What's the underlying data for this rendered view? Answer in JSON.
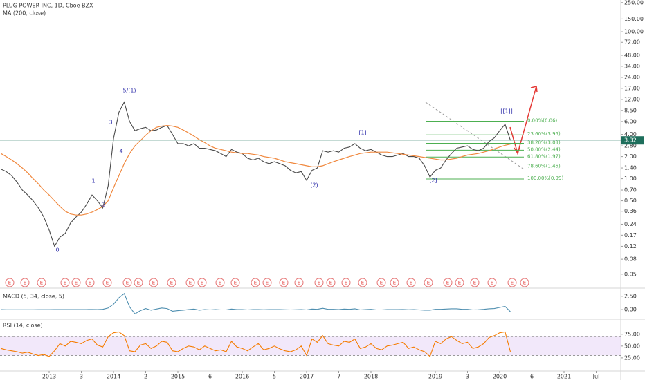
{
  "chart_data": [
    {
      "type": "line",
      "title": "PLUG POWER INC, 1D, Cboe BZX",
      "log_scale": true,
      "x": [
        "2012-04",
        "2012-05",
        "2012-06",
        "2012-07",
        "2012-08",
        "2012-09",
        "2012-10",
        "2012-11",
        "2012-12",
        "2013-01",
        "2013-02",
        "2013-03",
        "2013-04",
        "2013-05",
        "2013-06",
        "2013-07",
        "2013-08",
        "2013-09",
        "2013-10",
        "2013-11",
        "2013-12",
        "2014-01",
        "2014-02",
        "2014-03",
        "2014-04",
        "2014-05",
        "2014-06",
        "2014-07",
        "2014-08",
        "2014-09",
        "2014-10",
        "2014-11",
        "2014-12",
        "2015-01",
        "2015-02",
        "2015-03",
        "2015-04",
        "2015-05",
        "2015-06",
        "2015-07",
        "2015-08",
        "2015-09",
        "2015-10",
        "2015-11",
        "2015-12",
        "2016-01",
        "2016-02",
        "2016-03",
        "2016-04",
        "2016-05",
        "2016-06",
        "2016-07",
        "2016-08",
        "2016-09",
        "2016-10",
        "2016-11",
        "2016-12",
        "2017-01",
        "2017-02",
        "2017-03",
        "2017-04",
        "2017-05",
        "2017-06",
        "2017-07",
        "2017-08",
        "2017-09",
        "2017-10",
        "2017-11",
        "2017-12",
        "2018-01",
        "2018-02",
        "2018-03",
        "2018-04",
        "2018-05",
        "2018-06",
        "2018-07",
        "2018-08",
        "2018-09",
        "2018-10",
        "2018-11",
        "2018-12",
        "2019-01",
        "2019-02",
        "2019-03",
        "2019-04",
        "2019-05",
        "2019-06",
        "2019-07",
        "2019-08",
        "2019-09",
        "2019-10",
        "2019-11",
        "2019-12",
        "2020-01",
        "2020-02",
        "2020-03"
      ],
      "series": [
        {
          "color": "#4a4a4a",
          "values": [
            1.35,
            1.25,
            1.1,
            0.9,
            0.7,
            0.6,
            0.5,
            0.4,
            0.3,
            0.2,
            0.12,
            0.16,
            0.18,
            0.25,
            0.3,
            0.35,
            0.45,
            0.6,
            0.5,
            0.4,
            0.8,
            3.5,
            8,
            11,
            6,
            4.5,
            4.8,
            5,
            4.5,
            4.6,
            5,
            5.3,
            4,
            3,
            3,
            2.8,
            3,
            2.6,
            2.6,
            2.5,
            2.4,
            2.2,
            2,
            2.5,
            2.3,
            2.2,
            1.9,
            1.8,
            1.9,
            1.7,
            1.6,
            1.7,
            1.6,
            1.5,
            1.3,
            1.2,
            1.25,
            0.95,
            1.3,
            1.4,
            2.4,
            2.3,
            2.4,
            2.3,
            2.6,
            2.7,
            3,
            2.6,
            2.4,
            2.5,
            2.3,
            2.1,
            2,
            2,
            2.1,
            2.2,
            2,
            2,
            1.9,
            1.5,
            1.05,
            1.3,
            1.4,
            1.8,
            2.2,
            2.6,
            2.7,
            2.8,
            2.5,
            2.4,
            2.6,
            3.2,
            3.6,
            4.5,
            5.5,
            3.32
          ]
        },
        {
          "name": "MA (200, close)",
          "color": "#f0883e",
          "values": [
            2.2,
            2.0,
            1.8,
            1.6,
            1.4,
            1.2,
            1.0,
            0.85,
            0.7,
            0.6,
            0.5,
            0.42,
            0.36,
            0.33,
            0.32,
            0.32,
            0.33,
            0.35,
            0.38,
            0.42,
            0.5,
            0.75,
            1.1,
            1.6,
            2.2,
            2.8,
            3.3,
            3.9,
            4.5,
            5.0,
            5.2,
            5.3,
            5.2,
            5.0,
            4.6,
            4.2,
            3.8,
            3.4,
            3.1,
            2.8,
            2.6,
            2.5,
            2.4,
            2.3,
            2.25,
            2.2,
            2.2,
            2.15,
            2.1,
            2.0,
            1.95,
            1.9,
            1.8,
            1.7,
            1.65,
            1.6,
            1.55,
            1.5,
            1.45,
            1.45,
            1.5,
            1.6,
            1.7,
            1.8,
            1.9,
            2.0,
            2.1,
            2.2,
            2.25,
            2.3,
            2.3,
            2.3,
            2.3,
            2.25,
            2.2,
            2.15,
            2.1,
            2.05,
            2.0,
            1.95,
            1.9,
            1.85,
            1.8,
            1.8,
            1.85,
            1.9,
            2.0,
            2.1,
            2.15,
            2.2,
            2.3,
            2.4,
            2.55,
            2.7,
            2.85,
            2.95
          ]
        }
      ],
      "last_price": {
        "value": 3.32,
        "label": "3.32"
      },
      "last_price_color": "#1e6f5c",
      "ylim": [
        0.033,
        260
      ],
      "yticks": [
        {
          "value": 250,
          "label": "250.00"
        },
        {
          "value": 150,
          "label": "150.00"
        },
        {
          "value": 100,
          "label": "100.00"
        },
        {
          "value": 72,
          "label": "72.00"
        },
        {
          "value": 48,
          "label": "48.00"
        },
        {
          "value": 34,
          "label": "34.00"
        },
        {
          "value": 24,
          "label": "24.00"
        },
        {
          "value": 17,
          "label": "17.00"
        },
        {
          "value": 12,
          "label": "12.00"
        },
        {
          "value": 8.5,
          "label": "8.50"
        },
        {
          "value": 6,
          "label": "6.00"
        },
        {
          "value": 4,
          "label": "4.00"
        },
        {
          "value": 2.8,
          "label": "2.80"
        },
        {
          "value": 2,
          "label": "2.00"
        },
        {
          "value": 1.4,
          "label": "1.40"
        },
        {
          "value": 1,
          "label": "1.00"
        },
        {
          "value": 0.7,
          "label": "0.70"
        },
        {
          "value": 0.5,
          "label": "0.50"
        },
        {
          "value": 0.36,
          "label": "0.36"
        },
        {
          "value": 0.24,
          "label": "0.24"
        },
        {
          "value": 0.17,
          "label": "0.17"
        },
        {
          "value": 0.12,
          "label": "0.12"
        },
        {
          "value": 0.08,
          "label": "0.08"
        },
        {
          "value": 0.05,
          "label": "0.05"
        }
      ],
      "fib_color": "#4caf50",
      "fib_levels": [
        {
          "value": 6.06,
          "label": "0.00%(6.06)"
        },
        {
          "value": 3.95,
          "label": "23.60%(3.95)"
        },
        {
          "value": 3.03,
          "label": "38.20%(3.03)"
        },
        {
          "value": 2.44,
          "label": "50.00%(2.44)"
        },
        {
          "value": 1.97,
          "label": "61.80%(1.97)"
        },
        {
          "value": 1.45,
          "label": "78.60%(1.45)"
        },
        {
          "value": 0.99,
          "label": "100.00%(0.99)"
        }
      ],
      "annotations": [
        "0",
        "1",
        "2",
        "3",
        "4",
        "5/(1)",
        "(2)",
        "[1]",
        "[2]",
        "[[1]]"
      ],
      "earnings_marker": "E"
    },
    {
      "type": "line",
      "title": "MACD (5, 34, close, 5)",
      "x": [
        "2012-04",
        "2012-05",
        "2012-06",
        "2012-07",
        "2012-08",
        "2012-09",
        "2012-10",
        "2012-11",
        "2012-12",
        "2013-01",
        "2013-02",
        "2013-03",
        "2013-04",
        "2013-05",
        "2013-06",
        "2013-07",
        "2013-08",
        "2013-09",
        "2013-10",
        "2013-11",
        "2013-12",
        "2014-01",
        "2014-02",
        "2014-03",
        "2014-04",
        "2014-05",
        "2014-06",
        "2014-07",
        "2014-08",
        "2014-09",
        "2014-10",
        "2014-11",
        "2014-12",
        "2015-01",
        "2015-02",
        "2015-03",
        "2015-04",
        "2015-05",
        "2015-06",
        "2015-07",
        "2015-08",
        "2015-09",
        "2015-10",
        "2015-11",
        "2015-12",
        "2016-01",
        "2016-02",
        "2016-03",
        "2016-04",
        "2016-05",
        "2016-06",
        "2016-07",
        "2016-08",
        "2016-09",
        "2016-10",
        "2016-11",
        "2016-12",
        "2017-01",
        "2017-02",
        "2017-03",
        "2017-04",
        "2017-05",
        "2017-06",
        "2017-07",
        "2017-08",
        "2017-09",
        "2017-10",
        "2017-11",
        "2017-12",
        "2018-01",
        "2018-02",
        "2018-03",
        "2018-04",
        "2018-05",
        "2018-06",
        "2018-07",
        "2018-08",
        "2018-09",
        "2018-10",
        "2018-11",
        "2018-12",
        "2019-01",
        "2019-02",
        "2019-03",
        "2019-04",
        "2019-05",
        "2019-06",
        "2019-07",
        "2019-08",
        "2019-09",
        "2019-10",
        "2019-11",
        "2019-12",
        "2020-01",
        "2020-02",
        "2020-03"
      ],
      "series": [
        {
          "color": "#4f8fb0",
          "values": [
            0,
            -0.02,
            -0.03,
            -0.03,
            -0.02,
            -0.02,
            -0.02,
            -0.01,
            -0.01,
            -0.01,
            0,
            0,
            0.01,
            0.01,
            0.01,
            0.02,
            0.02,
            0.03,
            0.02,
            0.05,
            0.3,
            1.0,
            2.2,
            3.0,
            0.5,
            -0.8,
            -0.2,
            0.2,
            -0.1,
            0.1,
            0.3,
            0.2,
            -0.3,
            -0.2,
            -0.1,
            0,
            0.1,
            -0.1,
            0,
            -0.05,
            0,
            -0.05,
            -0.05,
            0.1,
            0,
            0,
            -0.05,
            0,
            0.02,
            -0.03,
            0,
            0.02,
            0,
            -0.02,
            -0.05,
            -0.03,
            0,
            -0.05,
            0.1,
            0.05,
            0.25,
            0.05,
            0.05,
            0,
            0.1,
            0.05,
            0.15,
            -0.05,
            0,
            0.05,
            -0.05,
            -0.05,
            0,
            0,
            0.02,
            0.03,
            -0.02,
            0,
            -0.05,
            -0.1,
            -0.1,
            0.05,
            0.05,
            0.1,
            0.15,
            0.15,
            0.05,
            0.05,
            -0.05,
            -0.02,
            0.05,
            0.15,
            0.2,
            0.4,
            0.6,
            -0.4
          ]
        }
      ],
      "ylim": [
        -1.8,
        3.9
      ],
      "yticks": [
        {
          "value": 2.5,
          "label": "2.50"
        },
        {
          "value": 0,
          "label": "0.00"
        }
      ]
    },
    {
      "type": "line",
      "title": "RSI (14, close)",
      "x": [
        "2012-04",
        "2012-05",
        "2012-06",
        "2012-07",
        "2012-08",
        "2012-09",
        "2012-10",
        "2012-11",
        "2012-12",
        "2013-01",
        "2013-02",
        "2013-03",
        "2013-04",
        "2013-05",
        "2013-06",
        "2013-07",
        "2013-08",
        "2013-09",
        "2013-10",
        "2013-11",
        "2013-12",
        "2014-01",
        "2014-02",
        "2014-03",
        "2014-04",
        "2014-05",
        "2014-06",
        "2014-07",
        "2014-08",
        "2014-09",
        "2014-10",
        "2014-11",
        "2014-12",
        "2015-01",
        "2015-02",
        "2015-03",
        "2015-04",
        "2015-05",
        "2015-06",
        "2015-07",
        "2015-08",
        "2015-09",
        "2015-10",
        "2015-11",
        "2015-12",
        "2016-01",
        "2016-02",
        "2016-03",
        "2016-04",
        "2016-05",
        "2016-06",
        "2016-07",
        "2016-08",
        "2016-09",
        "2016-10",
        "2016-11",
        "2016-12",
        "2017-01",
        "2017-02",
        "2017-03",
        "2017-04",
        "2017-05",
        "2017-06",
        "2017-07",
        "2017-08",
        "2017-09",
        "2017-10",
        "2017-11",
        "2017-12",
        "2018-01",
        "2018-02",
        "2018-03",
        "2018-04",
        "2018-05",
        "2018-06",
        "2018-07",
        "2018-08",
        "2018-09",
        "2018-10",
        "2018-11",
        "2018-12",
        "2019-01",
        "2019-02",
        "2019-03",
        "2019-04",
        "2019-05",
        "2019-06",
        "2019-07",
        "2019-08",
        "2019-09",
        "2019-10",
        "2019-11",
        "2019-12",
        "2020-01",
        "2020-02",
        "2020-03"
      ],
      "series": [
        {
          "color": "#f57c00",
          "values": [
            45,
            42,
            40,
            38,
            35,
            37,
            33,
            30,
            32,
            28,
            40,
            55,
            50,
            60,
            58,
            55,
            62,
            65,
            52,
            48,
            70,
            78,
            80,
            72,
            40,
            38,
            52,
            55,
            45,
            50,
            60,
            58,
            40,
            38,
            45,
            50,
            48,
            42,
            50,
            45,
            40,
            42,
            38,
            60,
            48,
            45,
            40,
            48,
            55,
            42,
            45,
            50,
            44,
            40,
            38,
            42,
            50,
            30,
            65,
            58,
            72,
            55,
            52,
            50,
            60,
            58,
            65,
            45,
            48,
            55,
            45,
            42,
            50,
            52,
            55,
            58,
            45,
            48,
            42,
            38,
            28,
            60,
            55,
            65,
            70,
            62,
            55,
            58,
            45,
            48,
            55,
            68,
            72,
            78,
            80,
            38
          ]
        }
      ],
      "band": [
        30,
        70
      ],
      "band_color": "#e9d8f7",
      "ylim": [
        -3,
        104
      ],
      "yticks": [
        {
          "value": 75,
          "label": "75.00"
        },
        {
          "value": 50,
          "label": "50.00"
        },
        {
          "value": 25,
          "label": "25.00"
        }
      ],
      "xticks": [
        {
          "value": "2013-01",
          "label": "2013"
        },
        {
          "value": "2013-07",
          "label": "3"
        },
        {
          "value": "2014-01",
          "label": "2014"
        },
        {
          "value": "2014-07",
          "label": "2"
        },
        {
          "value": "2015-01",
          "label": "2015"
        },
        {
          "value": "2015-07",
          "label": "6"
        },
        {
          "value": "2016-01",
          "label": "2016"
        },
        {
          "value": "2016-07",
          "label": "5"
        },
        {
          "value": "2017-01",
          "label": "2017"
        },
        {
          "value": "2017-07",
          "label": "7"
        },
        {
          "value": "2018-01",
          "label": "2018"
        },
        {
          "value": "2019-01",
          "label": "2019"
        },
        {
          "value": "2019-07",
          "label": "3"
        },
        {
          "value": "2020-01",
          "label": "2020"
        },
        {
          "value": "2020-07",
          "label": "6"
        },
        {
          "value": "2021-01",
          "label": "2021"
        },
        {
          "value": "2021-07",
          "label": "Jul"
        }
      ]
    }
  ]
}
